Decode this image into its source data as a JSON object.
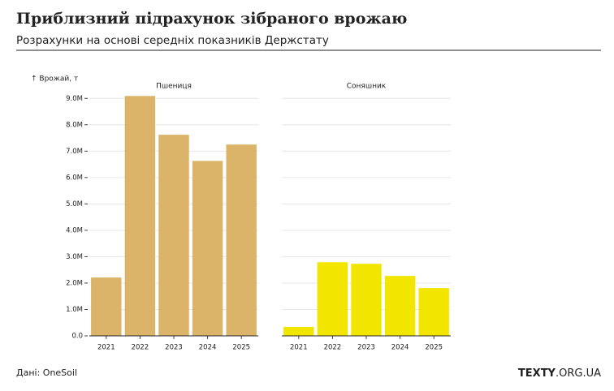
{
  "title": "Приблизний підрахунок зібраного врожаю",
  "subtitle": "Розрахунки на основі середніх показників Держстату",
  "source": "Дані: OneSoil",
  "logo": {
    "bold": "TEXTY",
    "rest": ".ORG.UA"
  },
  "y_label": "↑ Врожай, т",
  "chart_data": [
    {
      "type": "bar",
      "title": "Пшениця",
      "categories": [
        "2021",
        "2022",
        "2023",
        "2024",
        "2025"
      ],
      "values": [
        2210000,
        9090000,
        7620000,
        6630000,
        7250000
      ],
      "color": "#dbb46a",
      "ylim": [
        0,
        9100000
      ],
      "yticks": [
        {
          "value": 0,
          "label": "0.0"
        },
        {
          "value": 1000000,
          "label": "1.0M"
        },
        {
          "value": 2000000,
          "label": "2.0M"
        },
        {
          "value": 3000000,
          "label": "3.0M"
        },
        {
          "value": 4000000,
          "label": "4.0M"
        },
        {
          "value": 5000000,
          "label": "5.0M"
        },
        {
          "value": 6000000,
          "label": "6.0M"
        },
        {
          "value": 7000000,
          "label": "7.0M"
        },
        {
          "value": 8000000,
          "label": "8.0M"
        },
        {
          "value": 9000000,
          "label": "9.0M"
        }
      ],
      "grid": true
    },
    {
      "type": "bar",
      "title": "Соняшник",
      "categories": [
        "2021",
        "2022",
        "2023",
        "2024",
        "2025"
      ],
      "values": [
        340000,
        2790000,
        2730000,
        2270000,
        1810000
      ],
      "color": "#f2e600",
      "ylim": [
        0,
        9100000
      ],
      "yticks": [
        0,
        1000000,
        2000000,
        3000000,
        4000000,
        5000000,
        6000000,
        7000000,
        8000000,
        9000000
      ],
      "grid": true
    }
  ]
}
